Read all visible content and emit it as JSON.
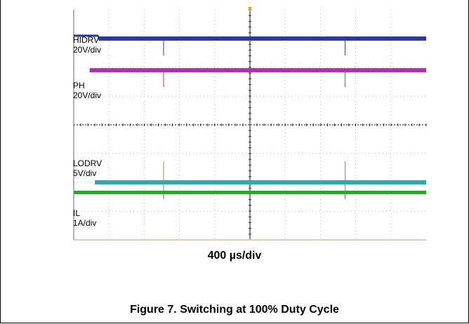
{
  "chart_data": {
    "type": "line",
    "title": "",
    "xlabel": "400 µs/div",
    "ylabel": "",
    "grid": true,
    "divisions": {
      "x": 10,
      "y": 8
    },
    "trigger_marker_color": "#f0a030",
    "series": [
      {
        "name": "HIDRV",
        "scale": "20V/div",
        "color": "#2a3a9c",
        "level_div": 7.0,
        "start_level_div": 7.1,
        "glitch_times_div": [
          2.55,
          7.7
        ]
      },
      {
        "name": "PH",
        "scale": "20V/div",
        "color": "#b030b0",
        "level_div": 5.9,
        "start_level_div": 5.9,
        "glitch_times_div": [
          2.55,
          7.7
        ]
      },
      {
        "name": "LODRV",
        "scale": "5V/div",
        "color": "#30a8b0",
        "level_div": 2.0,
        "start_level_div": 2.0,
        "glitch_times_div": [
          2.55,
          7.7
        ]
      },
      {
        "name": "IL",
        "scale": "1A/div",
        "color": "#30a030",
        "level_div": 1.65,
        "start_level_div": 1.65,
        "glitch_times_div": [
          2.55,
          7.7
        ]
      }
    ]
  },
  "caption": "Figure 7. Switching at 100% Duty Cycle"
}
